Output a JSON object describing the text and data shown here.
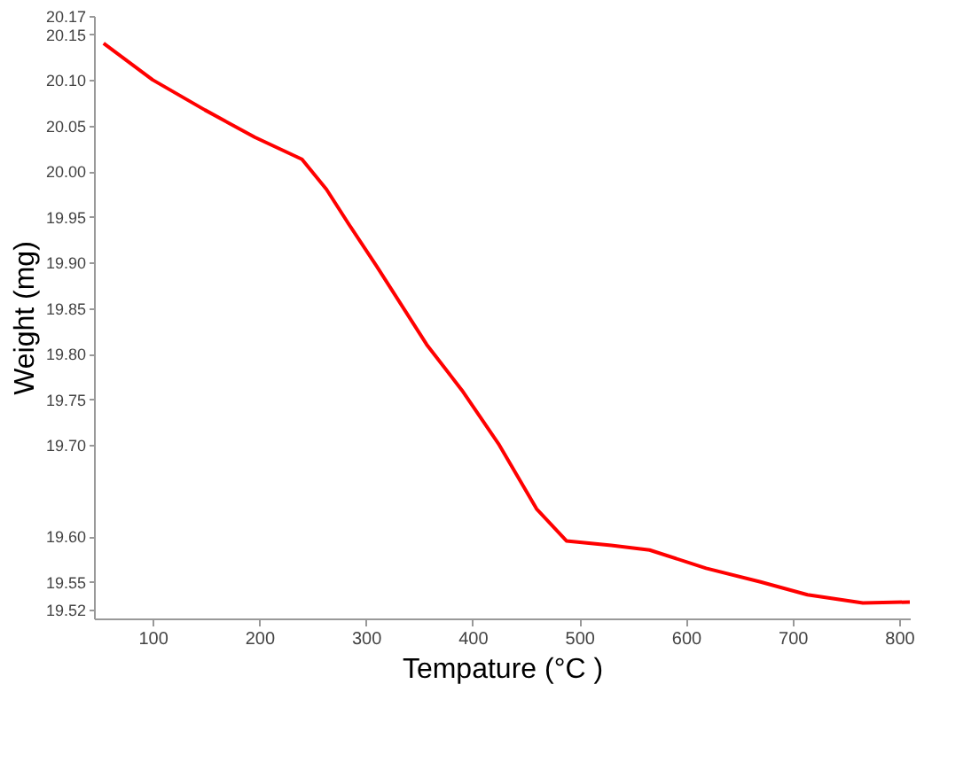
{
  "chart_data": {
    "type": "line",
    "xlabel": "Tempature (°C )",
    "ylabel": "Weight (mg)",
    "x": [
      54,
      100,
      149,
      196,
      240,
      263,
      285,
      310,
      357,
      390,
      425,
      460,
      488,
      530,
      566,
      619,
      670,
      714,
      766,
      810
    ],
    "series": [
      {
        "color": "#ff0000",
        "values": [
          20.14,
          20.1,
          20.067,
          20.037,
          20.013,
          19.98,
          19.94,
          19.896,
          19.81,
          19.76,
          19.7,
          19.63,
          19.595,
          19.59,
          19.585,
          19.565,
          19.55,
          19.536,
          19.527,
          19.528
        ]
      }
    ],
    "xlim": [
      45,
      810
    ],
    "xticks": [
      100,
      200,
      300,
      400,
      500,
      600,
      700,
      800
    ],
    "ylim": [
      19.51,
      20.17
    ],
    "yticks": [
      19.52,
      19.55,
      {
        "value": 19.6,
        "label": "19.60"
      },
      {
        "value": 19.7,
        "label": "19.70"
      },
      19.75,
      {
        "value": 19.8,
        "label": "19.80"
      },
      19.85,
      {
        "value": 19.9,
        "label": "19.90"
      },
      19.95,
      {
        "value": 20.0,
        "label": "20.00"
      },
      20.05,
      {
        "value": 20.1,
        "label": "20.10"
      },
      20.15,
      20.17
    ],
    "grid": false,
    "marker": "none",
    "line_style": "solid"
  }
}
